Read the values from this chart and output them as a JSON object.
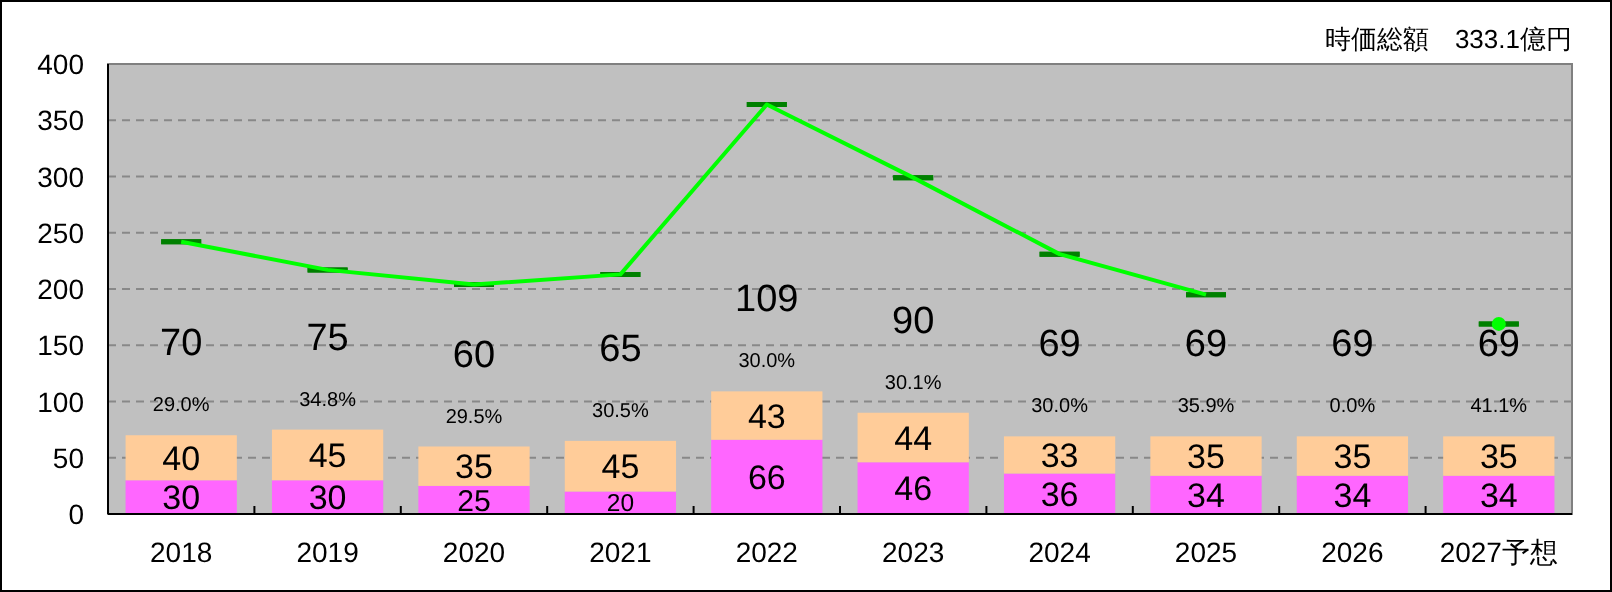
{
  "chart_data": {
    "type": "bar",
    "stacked": true,
    "title": "時価総額　333.1億円",
    "categories": [
      "2018",
      "2019",
      "2020",
      "2021",
      "2022",
      "2023",
      "2024",
      "2025",
      "2026",
      "2027予想"
    ],
    "series": [
      {
        "color": "#ff66ff",
        "values": [
          30,
          30,
          25,
          20,
          66,
          46,
          36,
          34,
          34,
          34
        ],
        "value_labels": [
          "30",
          "30",
          "25",
          "20",
          "66",
          "46",
          "36",
          "34",
          "34",
          "34"
        ]
      },
      {
        "color": "#ffcc99",
        "values": [
          40,
          45,
          35,
          45,
          43,
          44,
          33,
          35,
          35,
          35
        ],
        "value_labels": [
          "40",
          "45",
          "35",
          "45",
          "43",
          "44",
          "33",
          "35",
          "35",
          "35"
        ]
      },
      {
        "type": "line",
        "color": "#00ff00",
        "values": [
          242,
          217,
          204,
          213,
          364,
          299,
          231,
          195,
          null,
          169
        ],
        "errors": [
          0,
          0,
          0,
          0,
          0,
          0,
          0,
          0,
          null,
          0
        ]
      }
    ],
    "totals": [
      "70",
      "75",
      "60",
      "65",
      "109",
      "90",
      "69",
      "69",
      "69",
      "69"
    ],
    "annotations": [
      "29.0%",
      "34.8%",
      "29.5%",
      "30.5%",
      "30.0%",
      "30.1%",
      "30.0%",
      "35.9%",
      "0.0%",
      "41.1%"
    ],
    "ylim": [
      0,
      400
    ],
    "yticks": [
      0,
      50,
      100,
      150,
      200,
      250,
      300,
      350,
      400
    ],
    "grid": "y",
    "legend": false
  }
}
